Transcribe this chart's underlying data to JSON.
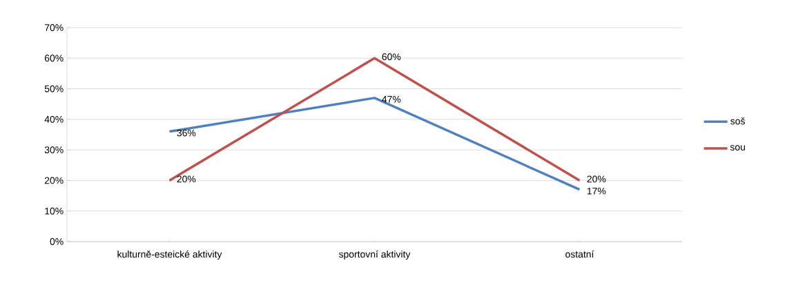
{
  "chart_data": {
    "type": "line",
    "categories": [
      "kulturně-esteické aktivity",
      "sportovní aktivity",
      "ostatní"
    ],
    "series": [
      {
        "name": "soš",
        "color": "#4f81bd",
        "values": [
          36,
          47,
          17
        ],
        "value_labels": [
          "36%",
          "47%",
          "17%"
        ]
      },
      {
        "name": "sou",
        "color": "#c0504d",
        "values": [
          20,
          60,
          20
        ],
        "value_labels": [
          "20%",
          "60%",
          "20%"
        ]
      }
    ],
    "ylim": [
      0,
      70
    ],
    "yticks": [
      {
        "value": 0,
        "label": "0%"
      },
      {
        "value": 10,
        "label": "10%"
      },
      {
        "value": 20,
        "label": "20%"
      },
      {
        "value": 30,
        "label": "30%"
      },
      {
        "value": 40,
        "label": "40%"
      },
      {
        "value": 50,
        "label": "50%"
      },
      {
        "value": 60,
        "label": "60%"
      },
      {
        "value": 70,
        "label": "70%"
      }
    ],
    "grid": "y",
    "legend": "right",
    "marker": "none",
    "line_style": "solid"
  }
}
